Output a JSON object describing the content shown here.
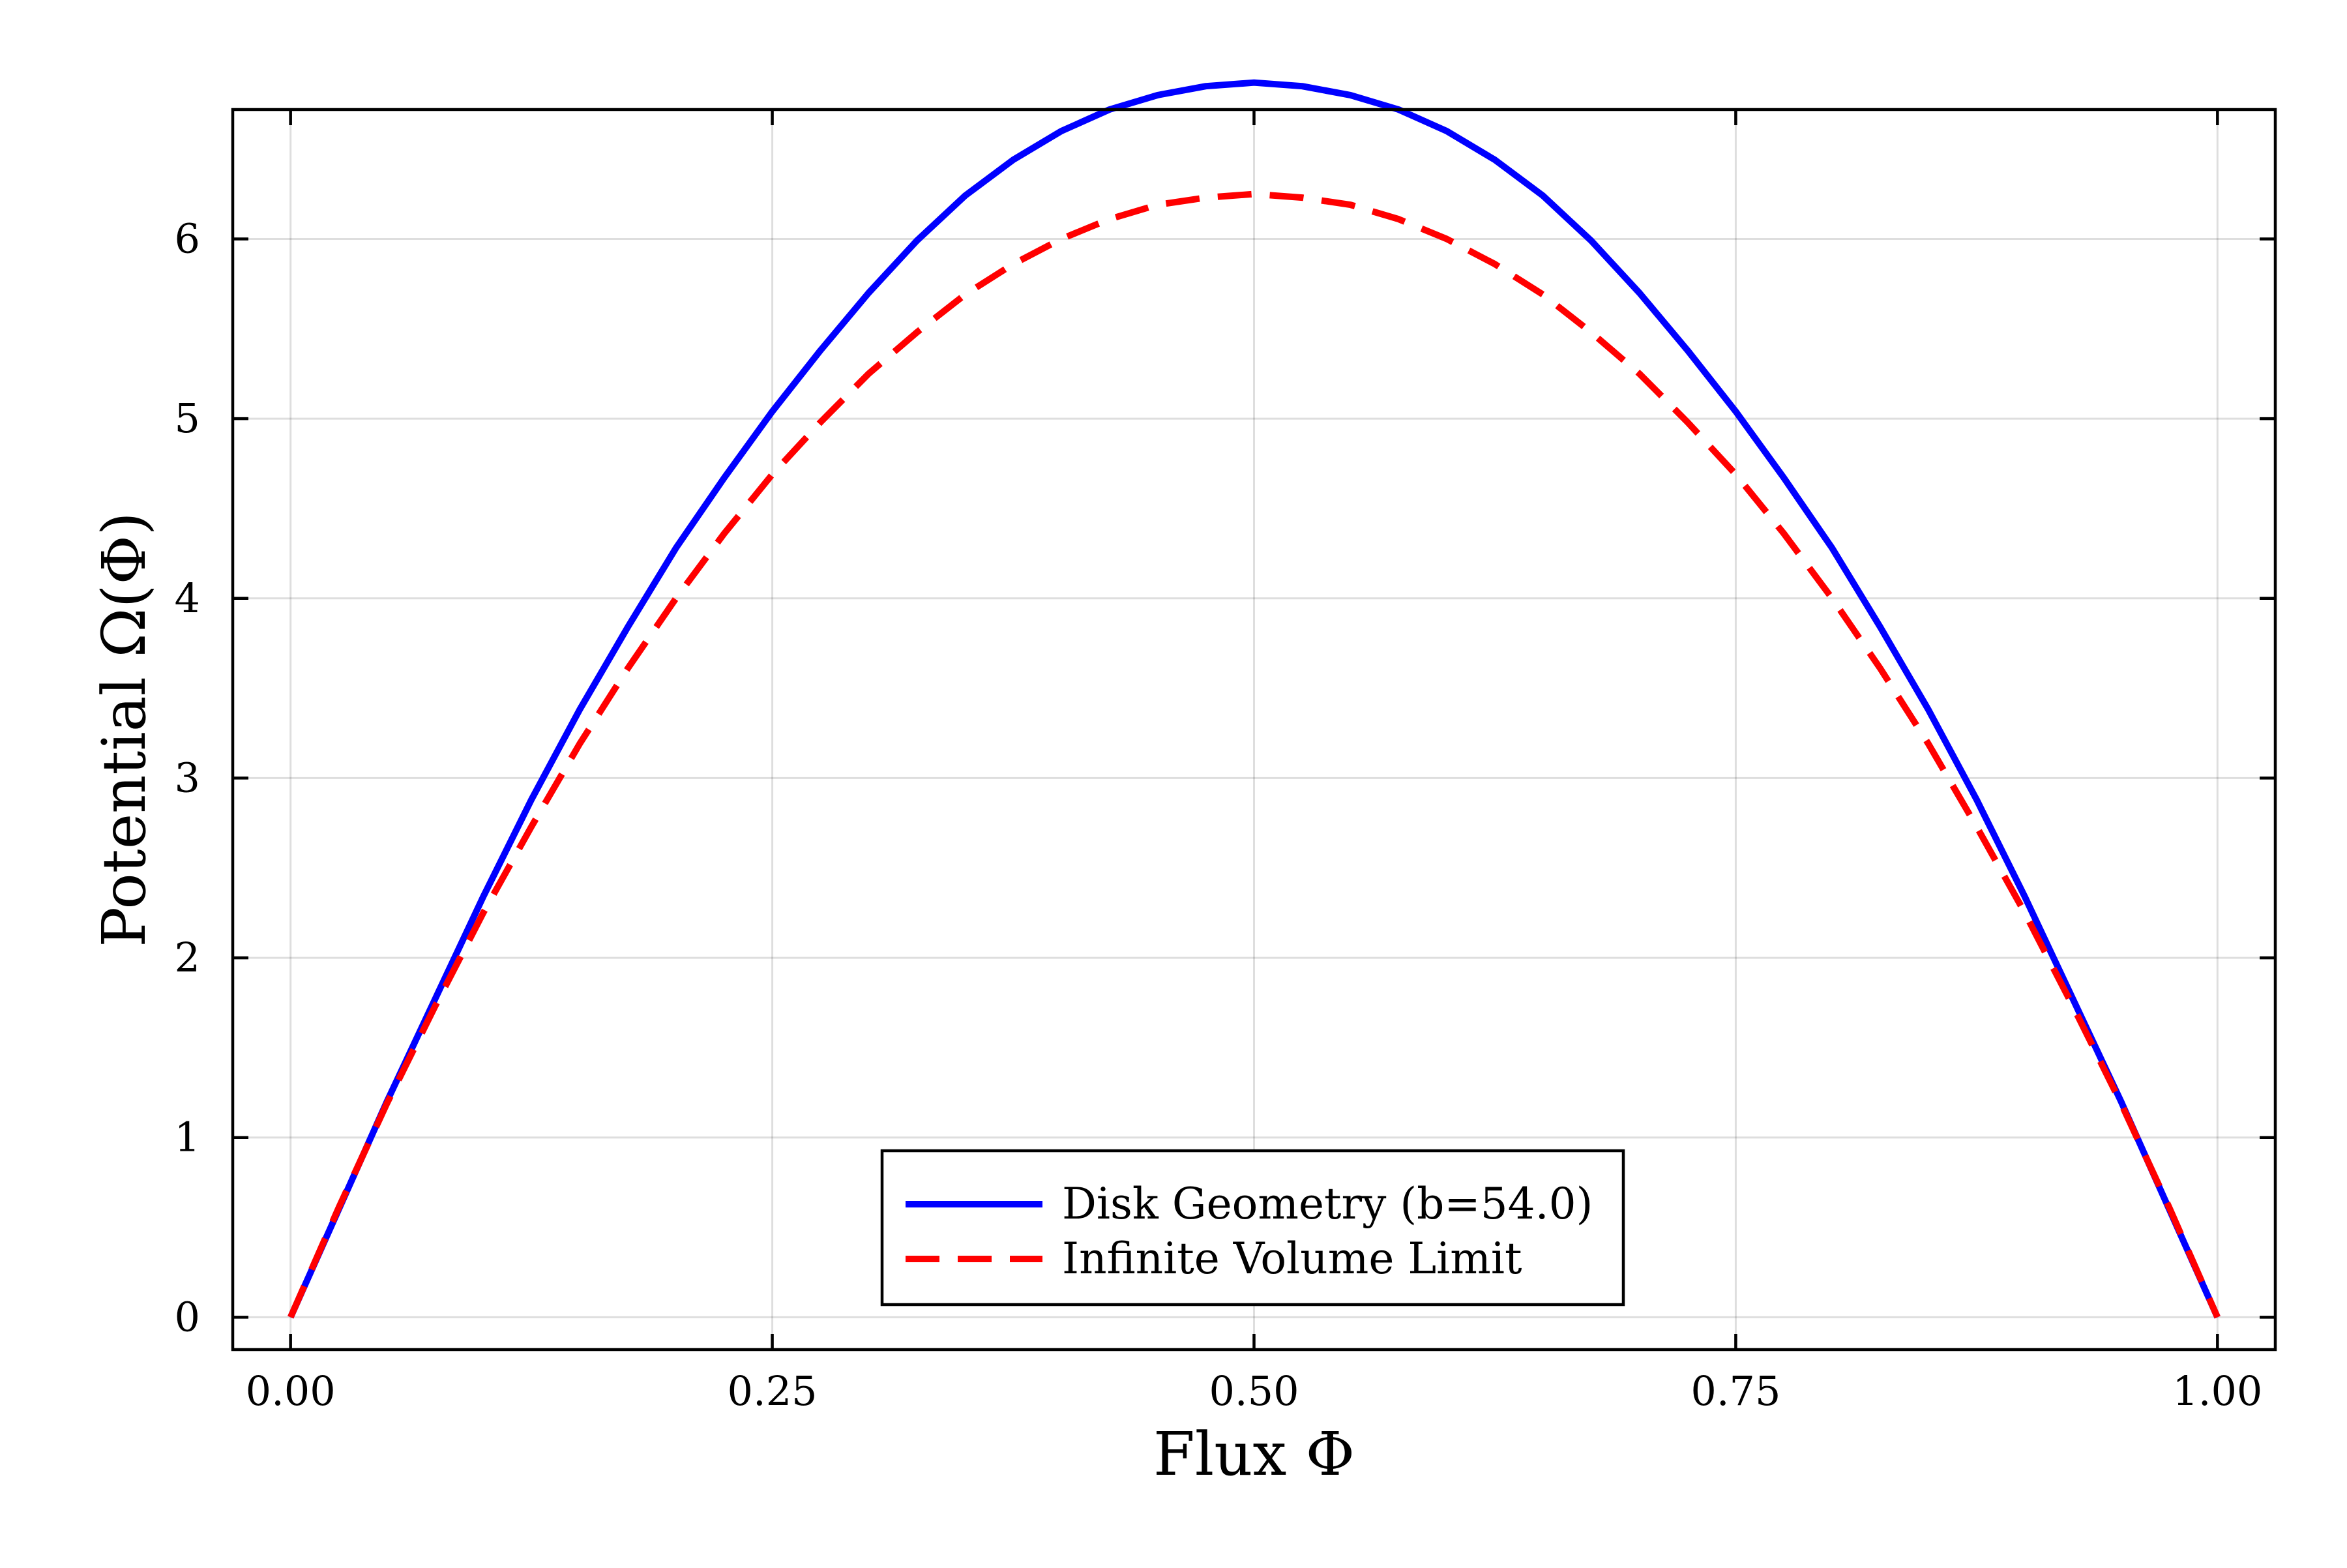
{
  "chart_data": {
    "type": "line",
    "title": "",
    "xlabel": "Flux Φ",
    "ylabel": "Potential Ω(Φ)",
    "xlim": [
      -0.03,
      1.03
    ],
    "ylim": [
      -0.18,
      6.72
    ],
    "xticks": [
      0.0,
      0.25,
      0.5,
      0.75,
      1.0
    ],
    "xtick_labels": [
      "0.00",
      "0.25",
      "0.50",
      "0.75",
      "1.00"
    ],
    "yticks": [
      0,
      1,
      2,
      3,
      4,
      5,
      6
    ],
    "ytick_labels": [
      "0",
      "1",
      "2",
      "3",
      "4",
      "5",
      "6"
    ],
    "grid": true,
    "legend_position": "bottom-center",
    "series": [
      {
        "name": "Disk Geometry (b=54.0)",
        "color": "#0000ff",
        "style": "solid",
        "x": [
          0.0,
          0.025,
          0.05,
          0.075,
          0.1,
          0.125,
          0.15,
          0.175,
          0.2,
          0.225,
          0.25,
          0.275,
          0.3,
          0.325,
          0.35,
          0.375,
          0.4,
          0.425,
          0.45,
          0.475,
          0.5,
          0.525,
          0.55,
          0.575,
          0.6,
          0.625,
          0.65,
          0.675,
          0.7,
          0.725,
          0.75,
          0.775,
          0.8,
          0.825,
          0.85,
          0.875,
          0.9,
          0.925,
          0.95,
          0.975,
          1.0
        ],
        "y": [
          0.0,
          0.6,
          1.2,
          1.77,
          2.34,
          2.88,
          3.38,
          3.84,
          4.28,
          4.67,
          5.04,
          5.38,
          5.7,
          5.99,
          6.24,
          6.44,
          6.6,
          6.72,
          6.8,
          6.85,
          6.87,
          6.85,
          6.8,
          6.72,
          6.6,
          6.44,
          6.24,
          5.99,
          5.7,
          5.38,
          5.04,
          4.67,
          4.28,
          3.84,
          3.38,
          2.88,
          2.34,
          1.77,
          1.2,
          0.6,
          0.0
        ]
      },
      {
        "name": "Infinite Volume Limit",
        "color": "#ff0000",
        "style": "dashed",
        "x": [
          0.0,
          0.025,
          0.05,
          0.075,
          0.1,
          0.125,
          0.15,
          0.175,
          0.2,
          0.225,
          0.25,
          0.275,
          0.3,
          0.325,
          0.35,
          0.375,
          0.4,
          0.425,
          0.45,
          0.475,
          0.5,
          0.525,
          0.55,
          0.575,
          0.6,
          0.625,
          0.65,
          0.675,
          0.7,
          0.725,
          0.75,
          0.775,
          0.8,
          0.825,
          0.85,
          0.875,
          0.9,
          0.925,
          0.95,
          0.975,
          1.0
        ],
        "y": [
          0.0,
          0.61,
          1.19,
          1.73,
          2.25,
          2.73,
          3.19,
          3.61,
          4.0,
          4.36,
          4.69,
          4.98,
          5.25,
          5.48,
          5.69,
          5.86,
          6.0,
          6.11,
          6.19,
          6.23,
          6.25,
          6.23,
          6.19,
          6.11,
          6.0,
          5.86,
          5.69,
          5.48,
          5.25,
          4.98,
          4.69,
          4.36,
          4.0,
          3.61,
          3.19,
          2.73,
          2.25,
          1.73,
          1.19,
          0.61,
          0.0
        ]
      }
    ]
  }
}
